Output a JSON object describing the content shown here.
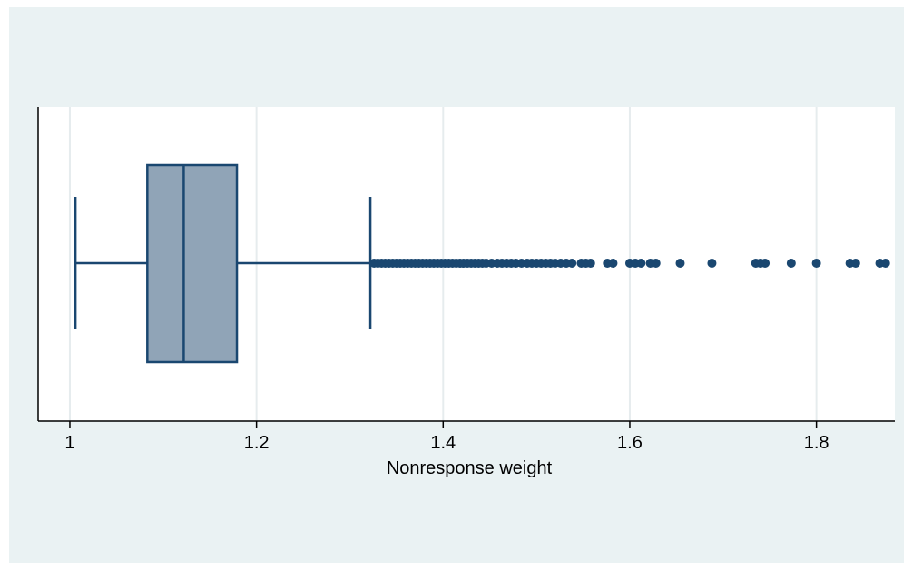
{
  "chart_data": {
    "type": "boxplot",
    "title": "",
    "xlabel": "Nonresponse weight",
    "ylabel": "",
    "xlim": [
      0.966,
      1.884
    ],
    "xticks": [
      1,
      1.2,
      1.4,
      1.6,
      1.8
    ],
    "xtick_labels": [
      "1",
      "1.2",
      "1.4",
      "1.6",
      "1.8"
    ],
    "grid": true,
    "orientation": "horizontal",
    "box": {
      "whisker_low": 1.006,
      "q1": 1.083,
      "median": 1.122,
      "q3": 1.179,
      "whisker_high": 1.322
    },
    "outliers": [
      1.326,
      1.33,
      1.334,
      1.338,
      1.342,
      1.346,
      1.35,
      1.354,
      1.358,
      1.362,
      1.366,
      1.37,
      1.374,
      1.378,
      1.382,
      1.386,
      1.39,
      1.394,
      1.398,
      1.402,
      1.406,
      1.41,
      1.414,
      1.418,
      1.422,
      1.426,
      1.43,
      1.434,
      1.438,
      1.442,
      1.446,
      1.452,
      1.458,
      1.463,
      1.468,
      1.473,
      1.478,
      1.484,
      1.49,
      1.495,
      1.5,
      1.505,
      1.51,
      1.515,
      1.52,
      1.526,
      1.532,
      1.538,
      1.548,
      1.553,
      1.558,
      1.576,
      1.582,
      1.6,
      1.606,
      1.612,
      1.622,
      1.628,
      1.654,
      1.688,
      1.735,
      1.74,
      1.745,
      1.773,
      1.8,
      1.836,
      1.842,
      1.868,
      1.874
    ],
    "colors": {
      "box_fill": "#90a4b7",
      "line": "#1a4770",
      "marker": "#1a4770",
      "plot_bg": "#ffffff",
      "outer_bg": "#eaf2f3",
      "grid": "#e6ecee"
    }
  }
}
